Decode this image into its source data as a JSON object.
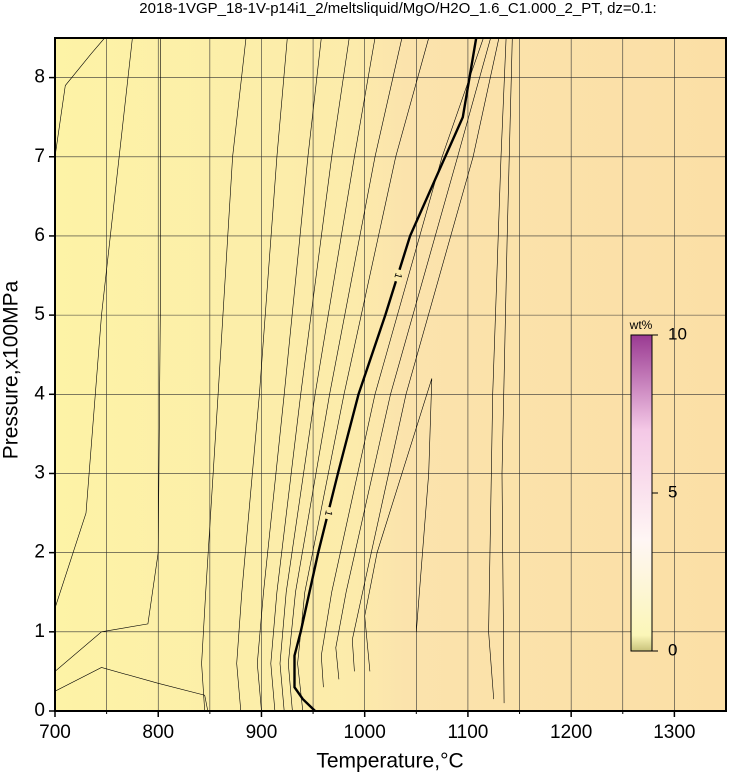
{
  "chart_data": {
    "type": "contour",
    "title": "2018-1VGP_18-1V-p14i1_2/meltsliquid/MgO/H2O_1.6_C1.000_2_PT, dz=0.1:",
    "xlabel": "Temperature,°C",
    "ylabel": "Pressure,x100MPa",
    "xlim": [
      700,
      1350
    ],
    "ylim": [
      0,
      8.5
    ],
    "xticks": [
      700,
      800,
      900,
      1000,
      1100,
      1200,
      1300
    ],
    "xminorticks": [
      750,
      850,
      950,
      1050,
      1150,
      1250
    ],
    "yticks": [
      0,
      1,
      2,
      3,
      4,
      5,
      6,
      7,
      8
    ],
    "grid": true,
    "contours": [
      {
        "level": 1,
        "bold": true,
        "x": [
          952,
          940,
          932,
          932,
          938,
          955,
          974,
          994,
          1020,
          1044,
          1078,
          1095,
          1108
        ],
        "y": [
          0,
          0.15,
          0.3,
          0.7,
          1,
          2,
          3,
          4,
          5,
          6,
          7,
          7.5,
          8.5
        ]
      },
      {
        "x": [
          845,
          842,
          846,
          858,
          872,
          885
        ],
        "y": [
          0,
          0.6,
          1.5,
          4,
          7,
          8.5
        ]
      },
      {
        "x": [
          880,
          876,
          881,
          898,
          915,
          925
        ],
        "y": [
          0,
          0.6,
          1.5,
          4,
          7,
          8.5
        ]
      },
      {
        "x": [
          900,
          896,
          902,
          922,
          945,
          958
        ],
        "y": [
          0,
          0.6,
          1.5,
          4,
          7,
          8.5
        ]
      },
      {
        "x": [
          913,
          909,
          915,
          938,
          968,
          985
        ],
        "y": [
          0,
          0.6,
          1.5,
          4,
          7,
          8.5
        ]
      },
      {
        "x": [
          922,
          918,
          924,
          952,
          990,
          1010
        ],
        "y": [
          0,
          0.6,
          1.5,
          4,
          7,
          8.5
        ]
      },
      {
        "x": [
          930,
          926,
          933,
          966,
          1010,
          1036
        ],
        "y": [
          0,
          0.6,
          1.5,
          4,
          7,
          8.5
        ]
      },
      {
        "x": [
          940,
          935,
          942,
          980,
          1030,
          1062
        ],
        "y": [
          0,
          0.6,
          1.5,
          4,
          7,
          8.5
        ]
      },
      {
        "x": [
          960,
          958,
          968,
          1010,
          1075,
          1115
        ],
        "y": [
          0.3,
          0.7,
          1.5,
          4,
          7,
          8.5
        ]
      },
      {
        "x": [
          975,
          972,
          982,
          1025,
          1090,
          1122
        ],
        "y": [
          0.4,
          0.8,
          1.5,
          4,
          7,
          8.5
        ]
      },
      {
        "x": [
          990,
          988,
          998,
          1040,
          1105,
          1130
        ],
        "y": [
          0.5,
          0.9,
          1.5,
          4,
          7,
          8.5
        ]
      },
      {
        "x": [
          1005,
          1000,
          1012,
          1065,
          1062,
          1050
        ],
        "y": [
          0.5,
          1.2,
          2,
          4.2,
          3,
          1
        ]
      },
      {
        "x": [
          1125,
          1120,
          1124,
          1132,
          1137
        ],
        "y": [
          0.15,
          1,
          4,
          7,
          8.5
        ]
      },
      {
        "x": [
          1135,
          1133,
          1138,
          1143
        ],
        "y": [
          0.1,
          3,
          6,
          8.5
        ]
      },
      {
        "x": [
          700,
          710,
          735,
          748
        ],
        "y": [
          7,
          7.9,
          8.3,
          8.5
        ]
      },
      {
        "x": [
          700,
          730,
          745,
          775
        ],
        "y": [
          1.3,
          2.5,
          5,
          8.5
        ]
      },
      {
        "x": [
          700,
          745,
          790,
          800,
          802,
          802
        ],
        "y": [
          0.5,
          1,
          1.1,
          2,
          5,
          8.5
        ]
      },
      {
        "x": [
          700,
          745,
          800,
          845,
          848
        ],
        "y": [
          0.25,
          0.55,
          0.35,
          0.2,
          0
        ]
      }
    ],
    "colorbar": {
      "label": "wt%",
      "lim": [
        0,
        10
      ],
      "ticks": [
        0,
        5,
        10
      ]
    }
  }
}
